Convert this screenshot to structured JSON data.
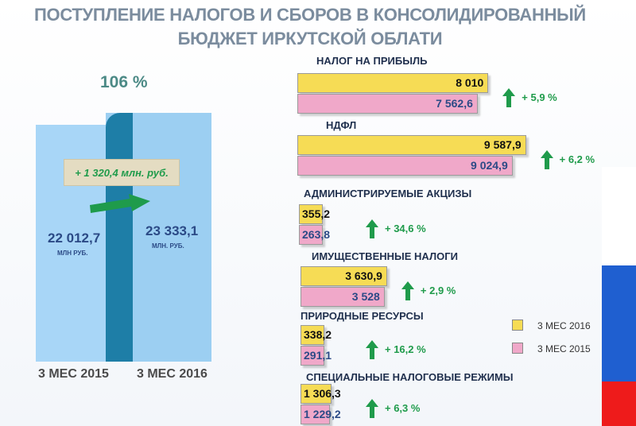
{
  "title_line1": "ПОСТУПЛЕНИЕ НАЛОГОВ И СБОРОВ В КОНСОЛИДИРОВАННЫЙ",
  "title_line2": "БЮДЖЕТ ИРКУТСКОЙ ОБЛАТИ",
  "colors": {
    "y2016": "#f6dc55",
    "y2015": "#f0a8c9",
    "growth": "#1f9b4b",
    "column": "#9fd3f5",
    "overlap": "#1e7ea7"
  },
  "chart_data": [
    {
      "type": "bar",
      "title": "",
      "growth_pct_label": "106 %",
      "difference_label": "+ 1 320,4 млн. руб.",
      "categories": [
        "3 МЕС 2015",
        "3 МЕС 2016"
      ],
      "values": [
        22012.7,
        23333.1
      ],
      "value_labels": [
        "22 012,7",
        "23 333,1"
      ],
      "unit_labels": [
        "МЛН РУБ.",
        "МЛН. РУБ."
      ]
    },
    {
      "type": "bar",
      "orientation": "horizontal",
      "categories": [
        "НАЛОГ НА ПРИБЫЛЬ",
        "НДФЛ",
        "АДМИНИСТРИРУЕМЫЕ АКЦИЗЫ",
        "ИМУЩЕСТВЕННЫЕ НАЛОГИ",
        "ПРИРОДНЫЕ РЕСУРСЫ",
        "СПЕЦИАЛЬНЫЕ НАЛОГОВЫЕ РЕЖИМЫ"
      ],
      "series": [
        {
          "name": "3 МЕС 2016",
          "values": [
            8010,
            9587.9,
            355.2,
            3630.9,
            338.2,
            1306.3
          ],
          "labels": [
            "8 010",
            "9 587,9",
            "355,2",
            "3 630,9",
            "338,2",
            "1 306,3"
          ]
        },
        {
          "name": "3 МЕС 2015",
          "values": [
            7562.6,
            9024.9,
            263.8,
            3528,
            291.1,
            1229.2
          ],
          "labels": [
            "7 562,6",
            "9 024,9",
            "263,8",
            "3 528",
            "291,1",
            "1 229,2"
          ]
        }
      ],
      "growth_labels": [
        "+ 5,9 %",
        "+ 6,2 %",
        "+ 34,6 %",
        "+ 2,9 %",
        "+ 16,2 %",
        "+ 6,3 %"
      ],
      "legend": [
        "3 МЕС 2016",
        "3 МЕС 2015"
      ],
      "legend_position": "right"
    }
  ]
}
